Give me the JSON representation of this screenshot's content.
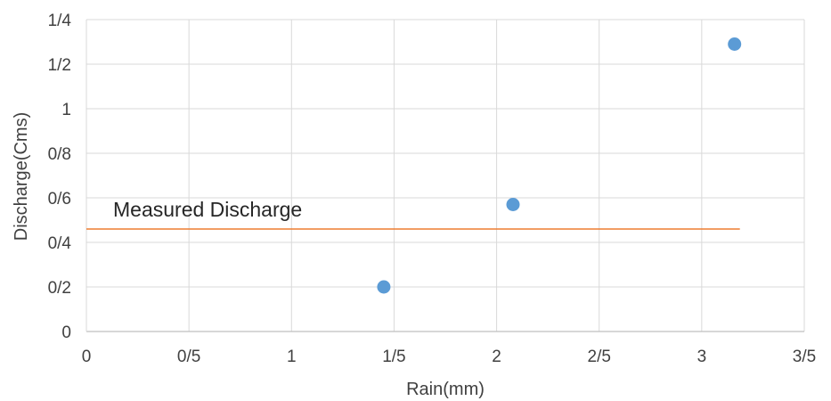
{
  "chart_data": {
    "type": "scatter",
    "xlabel": "Rain(mm)",
    "ylabel": "Discharge(Cms)",
    "x_ticks": [
      "0",
      "0/5",
      "1",
      "1/5",
      "2",
      "2/5",
      "3",
      "3/5"
    ],
    "y_ticks": [
      "0",
      "0/2",
      "0/4",
      "0/6",
      "0/8",
      "1",
      "1/2",
      "1/4"
    ],
    "xlim": [
      0,
      3.5
    ],
    "ylim": [
      0,
      1.4
    ],
    "grid": true,
    "series": [
      {
        "x": [
          1.45,
          2.08,
          3.16
        ],
        "y": [
          0.2,
          0.57,
          1.29
        ],
        "color": "#5b9bd5"
      }
    ],
    "reference_line": {
      "label": "Measured Discharge",
      "y": 0.46,
      "x_range": [
        0,
        3.16
      ],
      "color": "#ed7d31"
    }
  }
}
